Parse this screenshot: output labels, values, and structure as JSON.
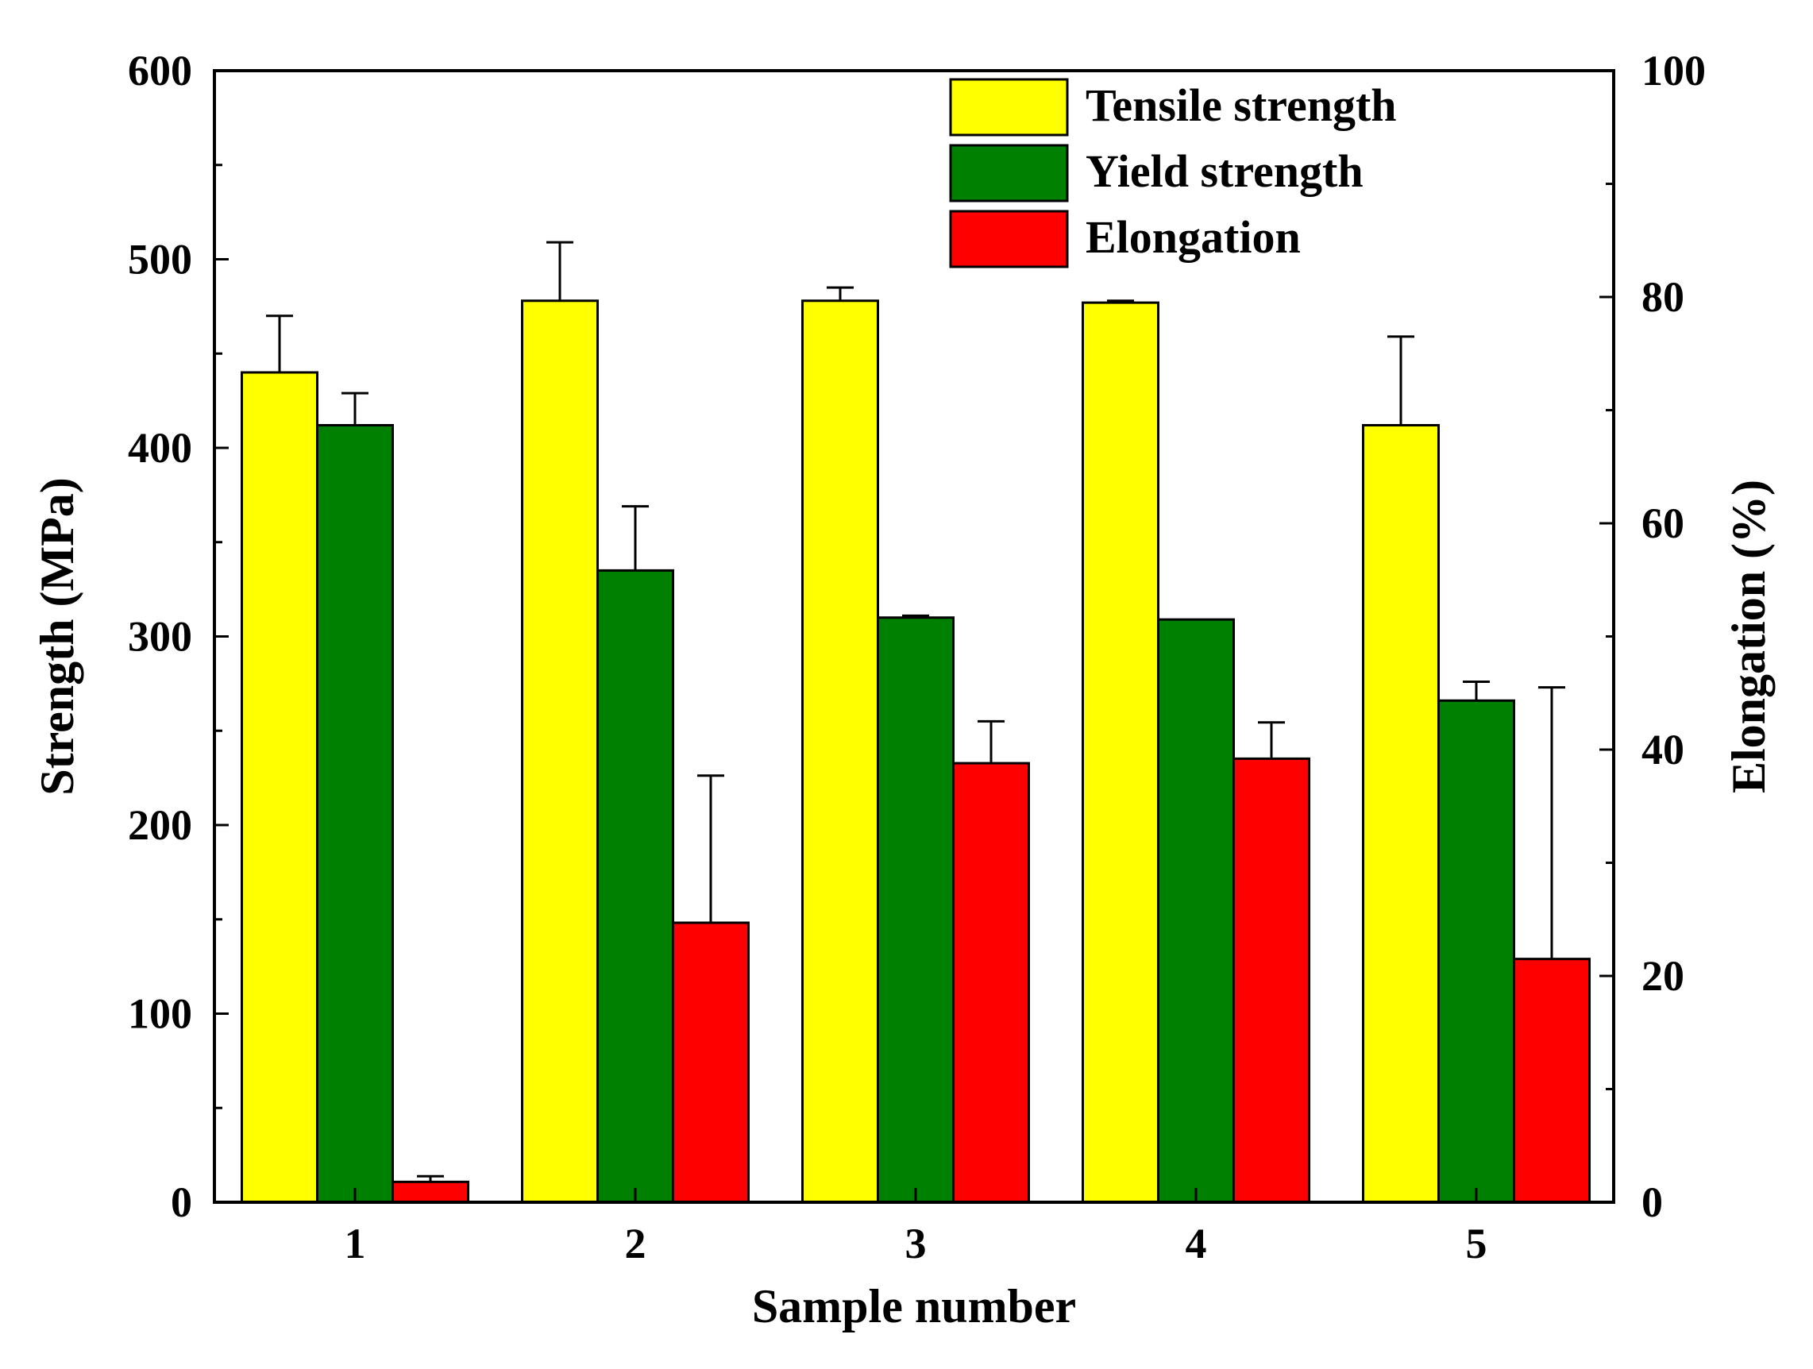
{
  "chart_data": {
    "type": "bar",
    "title": "",
    "xlabel": "Sample number",
    "ylabel_left": "Strength (MPa)",
    "ylabel_right": "Elongation (%)",
    "categories": [
      "1",
      "2",
      "3",
      "4",
      "5"
    ],
    "ylim_left": [
      0,
      600
    ],
    "ylim_right": [
      0,
      100
    ],
    "yticks_left": [
      "0",
      "100",
      "200",
      "300",
      "400",
      "500",
      "600"
    ],
    "yticks_right": [
      "0",
      "20",
      "40",
      "60",
      "80",
      "100"
    ],
    "grid": false,
    "legend_position": "top-right",
    "series": [
      {
        "name": "Tensile strength",
        "axis": "left",
        "color": "#ffff00",
        "values": [
          440,
          478,
          478,
          477,
          412
        ],
        "errors": [
          30,
          31,
          7,
          1,
          47
        ]
      },
      {
        "name": "Yield strength",
        "axis": "left",
        "color": "#008000",
        "values": [
          412,
          335,
          310,
          309,
          266
        ],
        "errors": [
          17,
          34,
          1,
          0,
          10
        ]
      },
      {
        "name": "Elongation",
        "axis": "right",
        "color": "#ff0000",
        "values": [
          1.8,
          24.7,
          38.8,
          39.2,
          21.5
        ],
        "errors": [
          0.5,
          13.0,
          3.7,
          3.2,
          24.0
        ]
      }
    ]
  }
}
